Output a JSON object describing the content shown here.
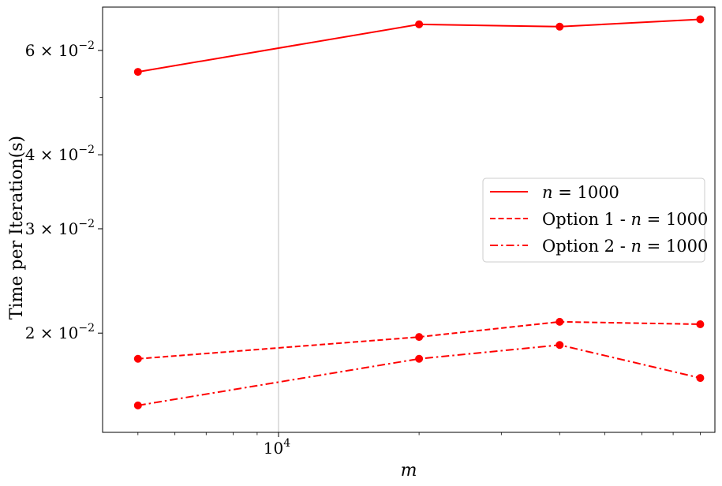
{
  "chart_data": {
    "type": "line",
    "xlabel": "m",
    "ylabel": "Time per Iteration(s)",
    "x_scale": "log",
    "y_scale": "log",
    "xlim": [
      4200,
      86000
    ],
    "ylim": [
      0.0136,
      0.071
    ],
    "x": [
      5000,
      10000,
      20000,
      40000,
      80000
    ],
    "x_ticks": [
      {
        "value": 10000,
        "label": "10^4",
        "base": "10",
        "exp": "4"
      }
    ],
    "y_ticks": [
      {
        "value": 0.02,
        "label": "2×10^−2",
        "mant": "2 × 10",
        "exp": "−2"
      },
      {
        "value": 0.03,
        "label": "3×10^−2",
        "mant": "3 × 10",
        "exp": "−2"
      },
      {
        "value": 0.04,
        "label": "4×10^−2",
        "mant": "4 × 10",
        "exp": "−2"
      },
      {
        "value": 0.06,
        "label": "6×10^−2",
        "mant": "6 × 10",
        "exp": "−2"
      }
    ],
    "grid": "x-major only",
    "legend_position": "center-right",
    "color": "#ff0000",
    "series": [
      {
        "name": "n = 1000",
        "name_math": "n",
        "name_eq": " = 1000",
        "name_prefix": "",
        "style": "solid",
        "values": [
          0.0552,
          null,
          0.0664,
          0.0658,
          0.0677
        ]
      },
      {
        "name": "Option 1 - n = 1000",
        "name_math": "n",
        "name_eq": " = 1000",
        "name_prefix": "Option 1 - ",
        "style": "dashed",
        "values": [
          0.0181,
          null,
          0.0197,
          0.0209,
          0.0207
        ]
      },
      {
        "name": "Option 2 - n = 1000",
        "name_math": "n",
        "name_eq": " = 1000",
        "name_prefix": "Option 2 - ",
        "style": "dashdot",
        "values": [
          0.0151,
          null,
          0.0181,
          0.0191,
          0.0168
        ]
      }
    ]
  }
}
